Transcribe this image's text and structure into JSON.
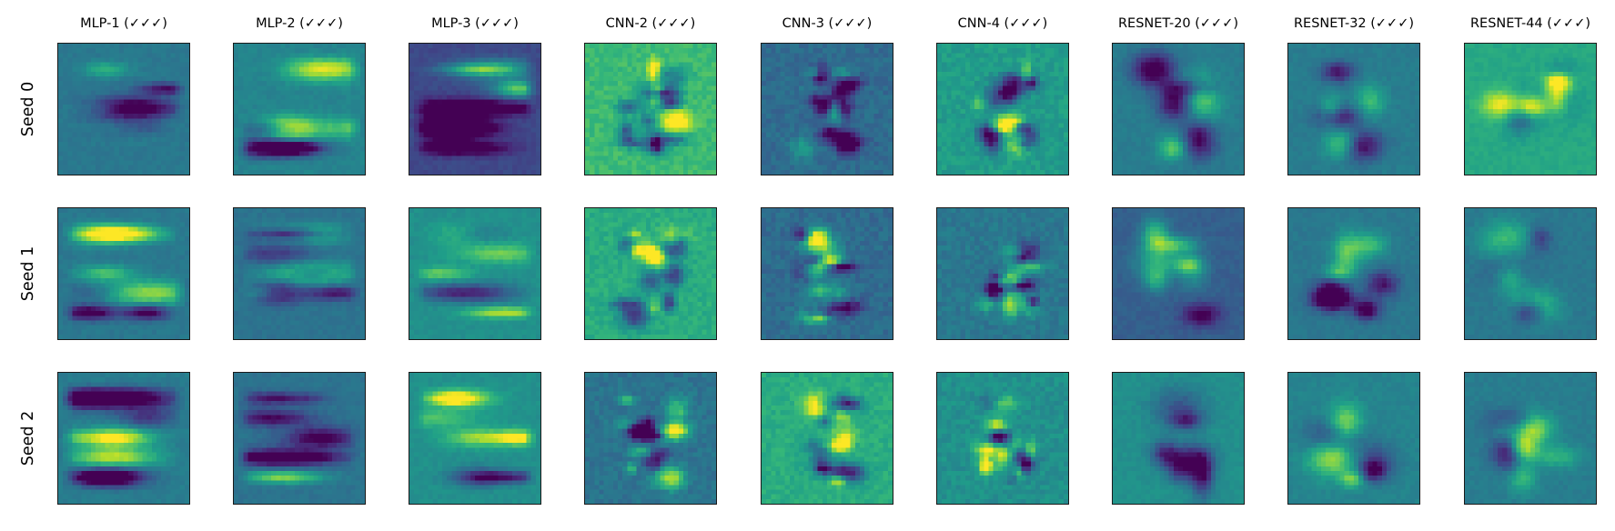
{
  "chart_data": {
    "type": "heatmap",
    "colormap": "viridis",
    "grid": false,
    "columns": [
      "MLP-1 (✓✓✓)",
      "MLP-2 (✓✓✓)",
      "MLP-3 (✓✓✓)",
      "CNN-2 (✓✓✓)",
      "CNN-3 (✓✓✓)",
      "CNN-4 (✓✓✓)",
      "RESNET-20 (✓✓✓)",
      "RESNET-32 (✓✓✓)",
      "RESNET-44 (✓✓✓)"
    ],
    "rows": [
      "Seed 0",
      "Seed 1",
      "Seed 2"
    ],
    "panels": [
      [
        {
          "base": 0.4,
          "pattern": "bands"
        },
        {
          "base": 0.45,
          "pattern": "bands"
        },
        {
          "base": 0.22,
          "pattern": "bands"
        },
        {
          "base": 0.68,
          "pattern": "digit"
        },
        {
          "base": 0.35,
          "pattern": "digit"
        },
        {
          "base": 0.55,
          "pattern": "digit"
        },
        {
          "base": 0.42,
          "pattern": "smooth-digit"
        },
        {
          "base": 0.42,
          "pattern": "smooth-digit"
        },
        {
          "base": 0.6,
          "pattern": "smooth-digit"
        }
      ],
      [
        {
          "base": 0.4,
          "pattern": "bands"
        },
        {
          "base": 0.38,
          "pattern": "bands"
        },
        {
          "base": 0.5,
          "pattern": "bands"
        },
        {
          "base": 0.62,
          "pattern": "digit"
        },
        {
          "base": 0.35,
          "pattern": "digit"
        },
        {
          "base": 0.4,
          "pattern": "digit"
        },
        {
          "base": 0.3,
          "pattern": "smooth-digit"
        },
        {
          "base": 0.4,
          "pattern": "smooth-digit"
        },
        {
          "base": 0.4,
          "pattern": "smooth-digit"
        }
      ],
      [
        {
          "base": 0.42,
          "pattern": "bands"
        },
        {
          "base": 0.38,
          "pattern": "bands"
        },
        {
          "base": 0.5,
          "pattern": "bands"
        },
        {
          "base": 0.38,
          "pattern": "digit"
        },
        {
          "base": 0.62,
          "pattern": "digit"
        },
        {
          "base": 0.5,
          "pattern": "digit"
        },
        {
          "base": 0.5,
          "pattern": "smooth-digit"
        },
        {
          "base": 0.45,
          "pattern": "smooth-digit"
        },
        {
          "base": 0.42,
          "pattern": "smooth-digit"
        }
      ]
    ]
  }
}
